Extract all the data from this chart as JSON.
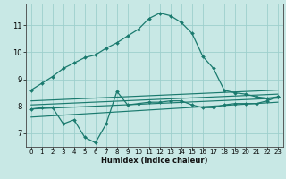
{
  "xlabel": "Humidex (Indice chaleur)",
  "xlim": [
    -0.5,
    23.5
  ],
  "ylim": [
    6.5,
    11.8
  ],
  "yticks": [
    7,
    8,
    9,
    10,
    11
  ],
  "xticks": [
    0,
    1,
    2,
    3,
    4,
    5,
    6,
    7,
    8,
    9,
    10,
    11,
    12,
    13,
    14,
    15,
    16,
    17,
    18,
    19,
    20,
    21,
    22,
    23
  ],
  "background_color": "#c8e8e5",
  "grid_color": "#9ecfcc",
  "line_color": "#1a7a6e",
  "lines": [
    {
      "x": [
        0,
        1,
        2,
        3,
        4,
        5,
        6,
        7,
        8,
        9,
        10,
        11,
        12,
        13,
        14,
        15,
        16,
        17,
        18,
        19,
        20,
        21,
        22,
        23
      ],
      "y": [
        8.6,
        8.85,
        9.1,
        9.4,
        9.6,
        9.8,
        9.9,
        10.15,
        10.35,
        10.6,
        10.85,
        11.25,
        11.45,
        11.35,
        11.1,
        10.7,
        9.85,
        9.4,
        8.6,
        8.5,
        8.45,
        8.35,
        8.3,
        8.35
      ]
    },
    {
      "x": [
        0,
        1,
        2,
        3,
        4,
        5,
        6,
        7,
        8,
        9,
        10,
        11,
        12,
        13,
        14,
        15,
        16,
        17,
        18,
        19,
        20,
        21,
        22,
        23
      ],
      "y": [
        7.9,
        7.95,
        7.95,
        7.35,
        7.5,
        6.85,
        6.65,
        7.35,
        8.55,
        8.05,
        8.1,
        8.15,
        8.15,
        8.2,
        8.2,
        8.05,
        7.95,
        7.95,
        8.05,
        8.1,
        8.1,
        8.1,
        8.2,
        8.35
      ]
    },
    {
      "x": [
        0,
        23
      ],
      "y": [
        7.6,
        8.15
      ]
    },
    {
      "x": [
        0,
        23
      ],
      "y": [
        7.9,
        8.3
      ]
    },
    {
      "x": [
        0,
        23
      ],
      "y": [
        8.05,
        8.45
      ]
    },
    {
      "x": [
        0,
        23
      ],
      "y": [
        8.2,
        8.6
      ]
    }
  ]
}
